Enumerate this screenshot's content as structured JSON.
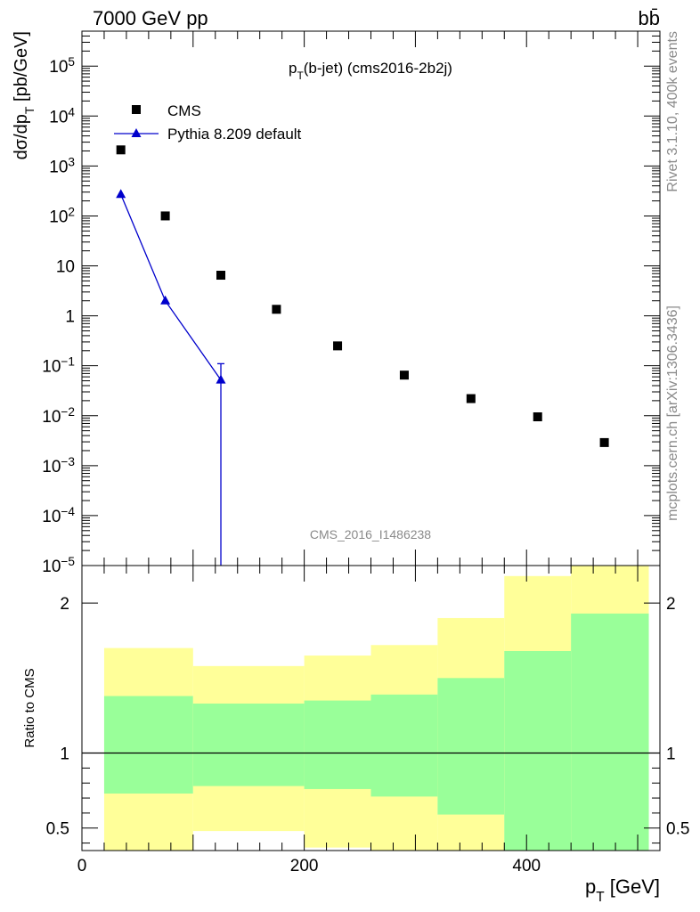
{
  "header": {
    "energy_label": "7000 GeV pp",
    "process_label": "bb̄"
  },
  "side_labels": {
    "rivet": "Rivet 3.1.10,  400k events",
    "mcplots": "mcplots.cern.ch [arXiv:1306.3436]"
  },
  "colors": {
    "cms": "#000000",
    "pythia": "#0000cc",
    "band_outer": "#ffff99",
    "band_inner": "#99ff99"
  },
  "chart_data": [
    {
      "type": "scatter",
      "title": "p_T(b-jet) (cms2016-2b2j)",
      "ylabel": "dσ/dp_T [pb/GeV]",
      "watermark": "CMS_2016_I1486238",
      "y_scale": "log",
      "ylim": [
        1e-05,
        500000.0
      ],
      "xlim": [
        0,
        520
      ],
      "yticks": [
        "10^-5",
        "10^-4",
        "10^-3",
        "10^-2",
        "10^-1",
        "1",
        "10",
        "10^2",
        "10^3",
        "10^4",
        "10^5"
      ],
      "legend_position": "top-left",
      "series": [
        {
          "name": "CMS",
          "marker": "square",
          "x": [
            35,
            75,
            125,
            175,
            230,
            290,
            350,
            410,
            470
          ],
          "y": [
            2100,
            100,
            6.5,
            1.35,
            0.25,
            0.065,
            0.022,
            0.0095,
            0.0029
          ]
        },
        {
          "name": "Pythia 8.209 default",
          "marker": "triangle",
          "line": true,
          "x": [
            35,
            75,
            125
          ],
          "y": [
            270,
            2.0,
            0.052
          ],
          "err_high": [
            0,
            0,
            0.11
          ],
          "err_low_to_bottom": [
            false,
            false,
            true
          ]
        }
      ]
    },
    {
      "type": "area",
      "ylabel": "Ratio to CMS",
      "xlabel": "p_T [GeV]",
      "xlim": [
        0,
        520
      ],
      "ylim": [
        0.35,
        2.25
      ],
      "xticks": [
        "0",
        "200",
        "400"
      ],
      "yticks": [
        "0.5",
        "1",
        "2"
      ],
      "reference_line": 1,
      "bins": [
        {
          "lo": 20,
          "hi": 100,
          "inner": [
            0.73,
            1.38
          ],
          "outer": [
            0.35,
            1.7
          ]
        },
        {
          "lo": 100,
          "hi": 200,
          "inner": [
            0.78,
            1.33
          ],
          "outer": [
            0.48,
            1.58
          ]
        },
        {
          "lo": 200,
          "hi": 260,
          "inner": [
            0.76,
            1.35
          ],
          "outer": [
            0.37,
            1.65
          ]
        },
        {
          "lo": 260,
          "hi": 320,
          "inner": [
            0.71,
            1.39
          ],
          "outer": [
            0.35,
            1.72
          ]
        },
        {
          "lo": 320,
          "hi": 380,
          "inner": [
            0.59,
            1.5
          ],
          "outer": [
            0.35,
            1.9
          ]
        },
        {
          "lo": 380,
          "hi": 440,
          "inner": [
            0.35,
            1.68
          ],
          "outer": [
            0.35,
            2.18
          ]
        },
        {
          "lo": 440,
          "hi": 510,
          "inner": [
            0.35,
            1.93
          ],
          "outer": [
            0.35,
            2.3
          ]
        }
      ]
    }
  ]
}
